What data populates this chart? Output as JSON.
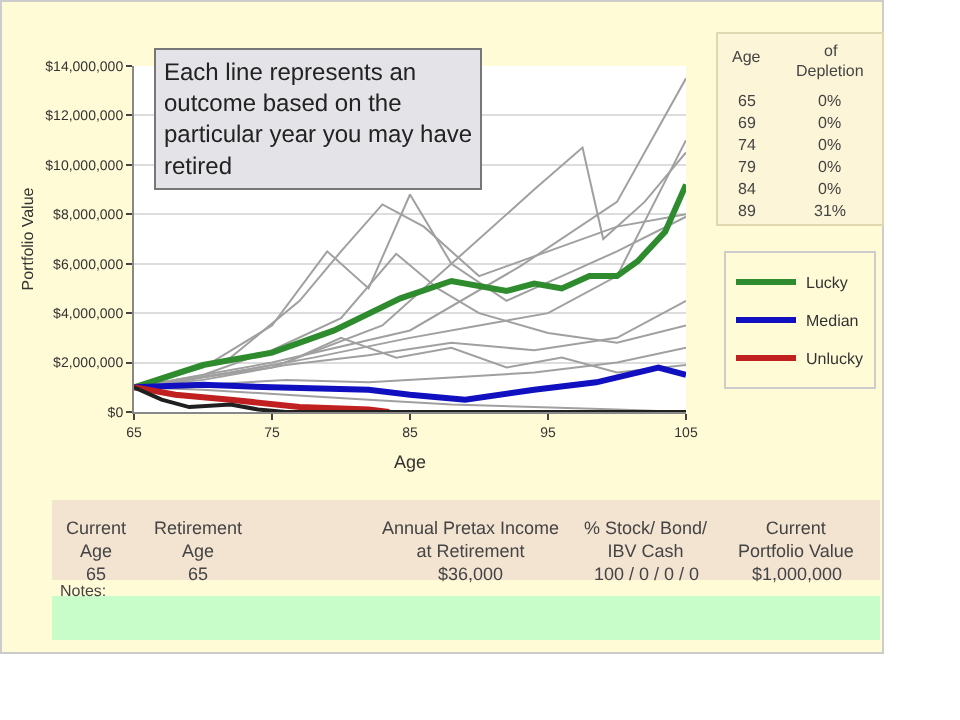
{
  "chart_data": {
    "type": "line",
    "xlabel": "Age",
    "ylabel": "Portfolio Value",
    "xlim": [
      65,
      105
    ],
    "xticks": [
      65,
      75,
      85,
      95,
      105
    ],
    "ylim": [
      0,
      14000000
    ],
    "yticks": [
      {
        "value": 0,
        "label": "$0"
      },
      {
        "value": 2000000,
        "label": "$2,000,000"
      },
      {
        "value": 4000000,
        "label": "$4,000,000"
      },
      {
        "value": 6000000,
        "label": "$6,000,000"
      },
      {
        "value": 8000000,
        "label": "$8,000,000"
      },
      {
        "value": 10000000,
        "label": "$10,000,000"
      },
      {
        "value": 12000000,
        "label": "$12,000,000"
      },
      {
        "value": 14000000,
        "label": "$14,000,000"
      }
    ],
    "grid": "y",
    "legend": "right",
    "marker": "none",
    "line_style": "solid",
    "series": [
      {
        "color": "#a0a0a0",
        "x": [
          65,
          75,
          85,
          93,
          100,
          105
        ],
        "values": [
          1000000,
          2000000,
          3300000,
          5900000,
          8500000,
          13500000
        ]
      },
      {
        "color": "#a0a0a0",
        "x": [
          65,
          75,
          83,
          88,
          94,
          97.5,
          99,
          102,
          105
        ],
        "values": [
          1000000,
          1800000,
          3500000,
          6000000,
          9000000,
          10700000,
          7000000,
          8500000,
          10500000
        ]
      },
      {
        "color": "#a0a0a0",
        "x": [
          65,
          72,
          77,
          80,
          83,
          86,
          90,
          95,
          100,
          105
        ],
        "values": [
          1000000,
          2200000,
          4500000,
          6500000,
          8400000,
          7500000,
          5500000,
          6500000,
          7500000,
          8000000
        ]
      },
      {
        "color": "#a0a0a0",
        "x": [
          65,
          70,
          75,
          79,
          82,
          85,
          88,
          92,
          96,
          100,
          105
        ],
        "values": [
          1000000,
          1800000,
          3500000,
          6500000,
          5000000,
          8800000,
          6000000,
          4500000,
          5500000,
          6500000,
          7900000
        ]
      },
      {
        "color": "#a0a0a0",
        "x": [
          65,
          72,
          78,
          85,
          90,
          95,
          100,
          105
        ],
        "values": [
          1000000,
          1600000,
          2200000,
          3000000,
          3500000,
          4000000,
          5500000,
          11000000
        ]
      },
      {
        "color": "#a0a0a0",
        "x": [
          65,
          70,
          76,
          82,
          88,
          94,
          100,
          105
        ],
        "values": [
          1000000,
          1300000,
          1900000,
          2300000,
          2800000,
          2500000,
          3000000,
          4500000
        ]
      },
      {
        "color": "#a0a0a0",
        "x": [
          65,
          70,
          76,
          82,
          88,
          94,
          100,
          105
        ],
        "values": [
          1000000,
          1100000,
          1300000,
          1200000,
          1400000,
          1600000,
          2000000,
          2600000
        ]
      },
      {
        "color": "#a0a0a0",
        "x": [
          65,
          70,
          76,
          82,
          88,
          94,
          100,
          105
        ],
        "values": [
          1000000,
          900000,
          700000,
          500000,
          300000,
          200000,
          100000,
          0
        ]
      },
      {
        "color": "#a0a0a0",
        "x": [
          65,
          70,
          75,
          80,
          84,
          87,
          90,
          95,
          100,
          105
        ],
        "values": [
          1000000,
          1500000,
          2500000,
          3800000,
          6400000,
          5000000,
          4000000,
          3200000,
          2800000,
          3500000
        ]
      },
      {
        "color": "#a0a0a0",
        "x": [
          65,
          68,
          72,
          76,
          80,
          84,
          88,
          92,
          96,
          100,
          105
        ],
        "values": [
          1000000,
          1200000,
          1600000,
          2000000,
          3000000,
          2200000,
          2600000,
          1800000,
          2200000,
          1600000,
          1900000
        ]
      },
      {
        "name": "Lucky",
        "color": "#2e8b2e",
        "x": [
          65,
          70,
          75,
          79.5,
          84.3,
          88,
          92,
          94,
          96,
          98,
          100,
          101.5,
          103.5,
          105
        ],
        "values": [
          1000000,
          1900000,
          2400000,
          3300000,
          4600000,
          5300000,
          4900000,
          5200000,
          5000000,
          5500000,
          5500000,
          6100000,
          7300000,
          9200000
        ]
      },
      {
        "name": "Median",
        "color": "#1010c0",
        "x": [
          65,
          70,
          75,
          82,
          85,
          89,
          94,
          98.5,
          103,
          105
        ],
        "values": [
          1000000,
          1100000,
          1000000,
          900000,
          700000,
          500000,
          900000,
          1200000,
          1800000,
          1500000
        ]
      },
      {
        "name": "Unlucky",
        "color": "#c02020",
        "x": [
          65,
          68,
          72,
          77,
          82,
          83.5
        ],
        "values": [
          1000000,
          700000,
          500000,
          200000,
          100000,
          0
        ]
      },
      {
        "color": "#202020",
        "x": [
          65,
          67,
          69,
          72,
          74,
          76,
          105
        ],
        "values": [
          1000000,
          500000,
          200000,
          300000,
          100000,
          0,
          0
        ]
      }
    ],
    "annotations": [
      "Each line represents an outcome based on the particular year you may have retired",
      "Age",
      "of",
      "Depletion",
      "65",
      "0%",
      "69",
      "0%",
      "74",
      "0%",
      "79",
      "0%",
      "84",
      "0%",
      "89",
      "31%",
      "Current Age",
      "Retirement Age",
      "Annual Pretax Income at Retirement",
      "% Stock/ Bond/ IBV Cash",
      "Current Portfolio Value",
      "65",
      "65",
      "$36,000",
      "100 / 0 / 0 / 0",
      "$1,000,000",
      "Notes:"
    ]
  }
}
